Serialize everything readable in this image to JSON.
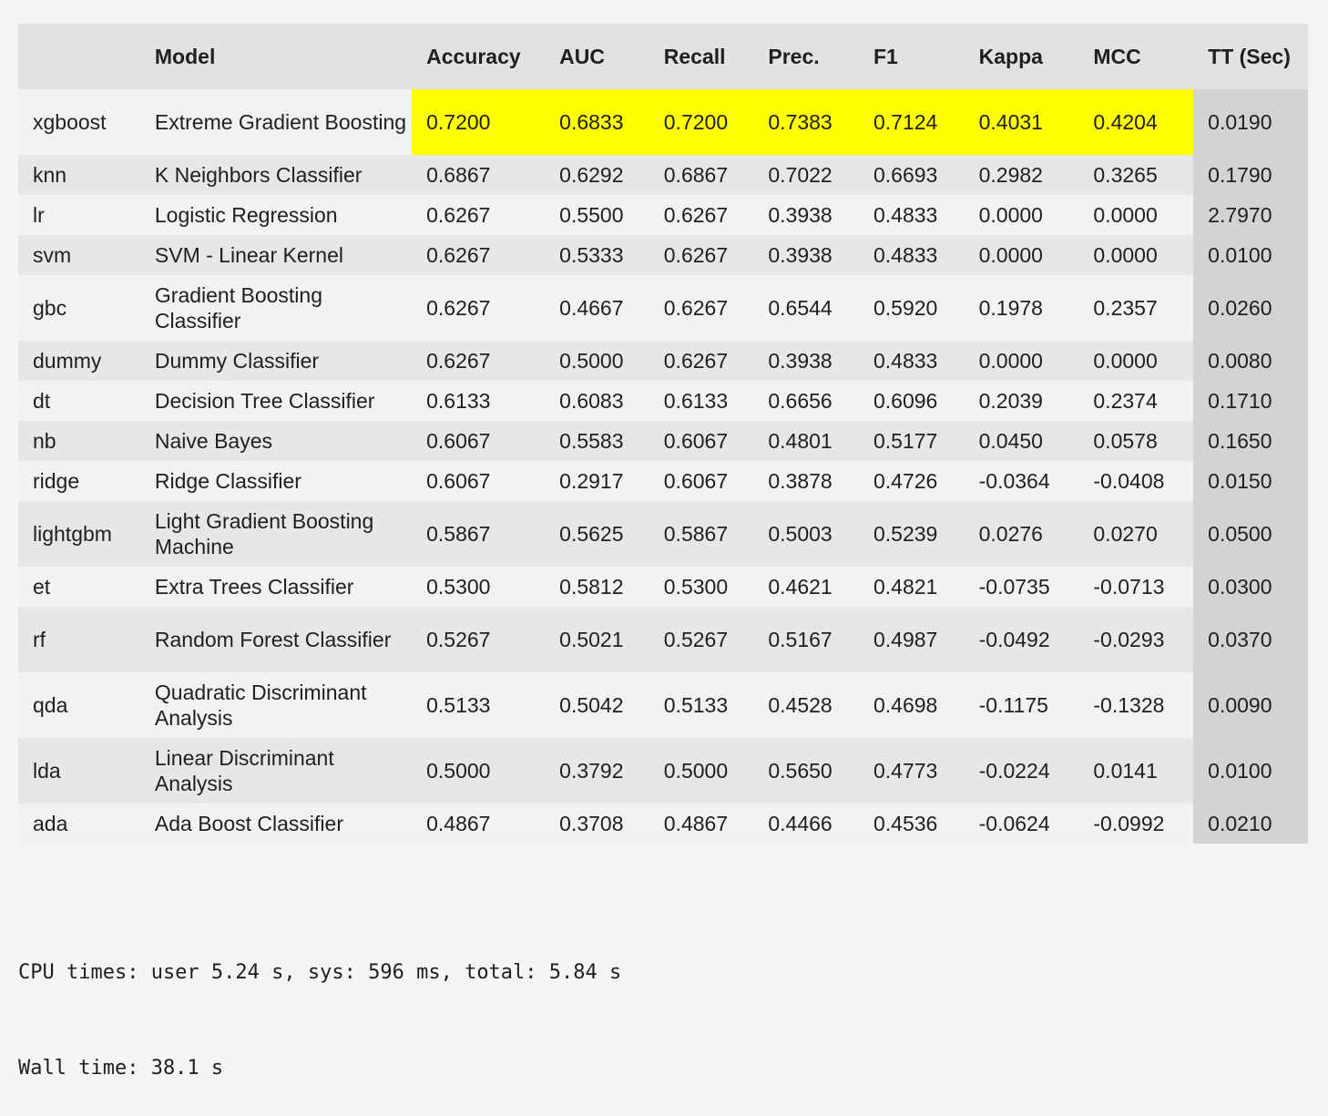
{
  "table": {
    "headers": [
      "",
      "Model",
      "Accuracy",
      "AUC",
      "Recall",
      "Prec.",
      "F1",
      "Kappa",
      "MCC",
      "TT (Sec)"
    ],
    "rows": [
      [
        "xgboost",
        "Extreme Gradient Boosting",
        "0.7200",
        "0.6833",
        "0.7200",
        "0.7383",
        "0.7124",
        "0.4031",
        "0.4204",
        "0.0190"
      ],
      [
        "knn",
        "K Neighbors Classifier",
        "0.6867",
        "0.6292",
        "0.6867",
        "0.7022",
        "0.6693",
        "0.2982",
        "0.3265",
        "0.1790"
      ],
      [
        "lr",
        "Logistic Regression",
        "0.6267",
        "0.5500",
        "0.6267",
        "0.3938",
        "0.4833",
        "0.0000",
        "0.0000",
        "2.7970"
      ],
      [
        "svm",
        "SVM - Linear Kernel",
        "0.6267",
        "0.5333",
        "0.6267",
        "0.3938",
        "0.4833",
        "0.0000",
        "0.0000",
        "0.0100"
      ],
      [
        "gbc",
        "Gradient Boosting Classifier",
        "0.6267",
        "0.4667",
        "0.6267",
        "0.6544",
        "0.5920",
        "0.1978",
        "0.2357",
        "0.0260"
      ],
      [
        "dummy",
        "Dummy Classifier",
        "0.6267",
        "0.5000",
        "0.6267",
        "0.3938",
        "0.4833",
        "0.0000",
        "0.0000",
        "0.0080"
      ],
      [
        "dt",
        "Decision Tree Classifier",
        "0.6133",
        "0.6083",
        "0.6133",
        "0.6656",
        "0.6096",
        "0.2039",
        "0.2374",
        "0.1710"
      ],
      [
        "nb",
        "Naive Bayes",
        "0.6067",
        "0.5583",
        "0.6067",
        "0.4801",
        "0.5177",
        "0.0450",
        "0.0578",
        "0.1650"
      ],
      [
        "ridge",
        "Ridge Classifier",
        "0.6067",
        "0.2917",
        "0.6067",
        "0.3878",
        "0.4726",
        "-0.0364",
        "-0.0408",
        "0.0150"
      ],
      [
        "lightgbm",
        "Light Gradient Boosting Machine",
        "0.5867",
        "0.5625",
        "0.5867",
        "0.5003",
        "0.5239",
        "0.0276",
        "0.0270",
        "0.0500"
      ],
      [
        "et",
        "Extra Trees Classifier",
        "0.5300",
        "0.5812",
        "0.5300",
        "0.4621",
        "0.4821",
        "-0.0735",
        "-0.0713",
        "0.0300"
      ],
      [
        "rf",
        "Random Forest Classifier",
        "0.5267",
        "0.5021",
        "0.5267",
        "0.5167",
        "0.4987",
        "-0.0492",
        "-0.0293",
        "0.0370"
      ],
      [
        "qda",
        "Quadratic Discriminant Analysis",
        "0.5133",
        "0.5042",
        "0.5133",
        "0.4528",
        "0.4698",
        "-0.1175",
        "-0.1328",
        "0.0090"
      ],
      [
        "lda",
        "Linear Discriminant Analysis",
        "0.5000",
        "0.3792",
        "0.5000",
        "0.5650",
        "0.4773",
        "-0.0224",
        "0.0141",
        "0.0100"
      ],
      [
        "ada",
        "Ada Boost Classifier",
        "0.4867",
        "0.3708",
        "0.4867",
        "0.4466",
        "0.4536",
        "-0.0624",
        "-0.0992",
        "0.0210"
      ]
    ]
  },
  "output": {
    "cpu_times": "CPU times: user 5.24 s, sys: 596 ms, total: 5.84 s",
    "wall_time": "Wall time: 38.1 s"
  },
  "colors": {
    "highlight": "#ffff00",
    "tt_column": "#d3d3d3",
    "header_bg": "#e2e2e2",
    "row_odd": "#f2f2f2",
    "row_even": "#e7e7e7"
  }
}
